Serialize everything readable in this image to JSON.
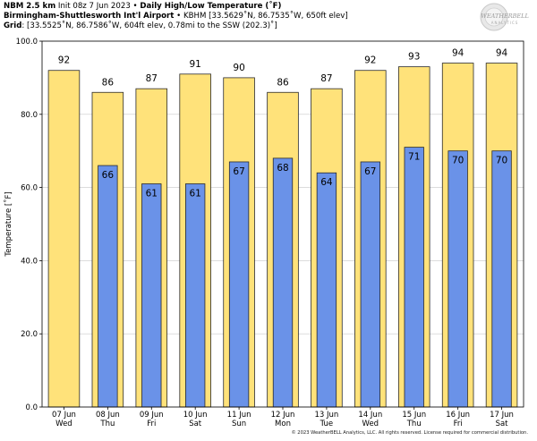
{
  "header": {
    "model": "NBM 2.5 km",
    "init": "Init 08z 7 Jun 2023",
    "product": "Daily High/Low Temperature (˚F)",
    "sep": "•",
    "station_name": "Birmingham-Shuttlesworth Int'l Airport",
    "station_info": "KBHM [33.5629˚N, 86.7535˚W, 650ft elev]",
    "grid_label": "Grid",
    "grid_info": ": [33.5525˚N, 86.7586˚W, 604ft elev, 0.78mi to the SSW (202.3)˚]"
  },
  "logo": {
    "line1": "WEATHERBELL",
    "line2": "ANALYTICS"
  },
  "footer": "© 2023 WeatherBELL Analytics, LLC. All rights reserved. License required for commercial distribution.",
  "colors": {
    "high": "#ffe27a",
    "low": "#6a92e8",
    "outline": "#2a2a2a"
  },
  "chart_data": {
    "type": "bar",
    "ylabel": "Temperature [˚F]",
    "ylim": [
      0,
      100
    ],
    "yticks": [
      "0.0",
      "20.0",
      "40.0",
      "60.0",
      "80.0",
      "100.0"
    ],
    "grid": true,
    "categories": [
      "07 Jun",
      "08 Jun",
      "09 Jun",
      "10 Jun",
      "11 Jun",
      "12 Jun",
      "13 Jun",
      "14 Jun",
      "15 Jun",
      "16 Jun",
      "17 Jun"
    ],
    "weekdays": [
      "Wed",
      "Thu",
      "Fri",
      "Sat",
      "Sun",
      "Mon",
      "Tue",
      "Wed",
      "Thu",
      "Fri",
      "Sat"
    ],
    "series": [
      {
        "key": "high",
        "values": [
          92,
          86,
          87,
          91,
          90,
          86,
          87,
          92,
          93,
          94,
          94
        ]
      },
      {
        "key": "low",
        "values": [
          null,
          66,
          61,
          61,
          67,
          68,
          64,
          67,
          71,
          70,
          70
        ]
      }
    ]
  }
}
